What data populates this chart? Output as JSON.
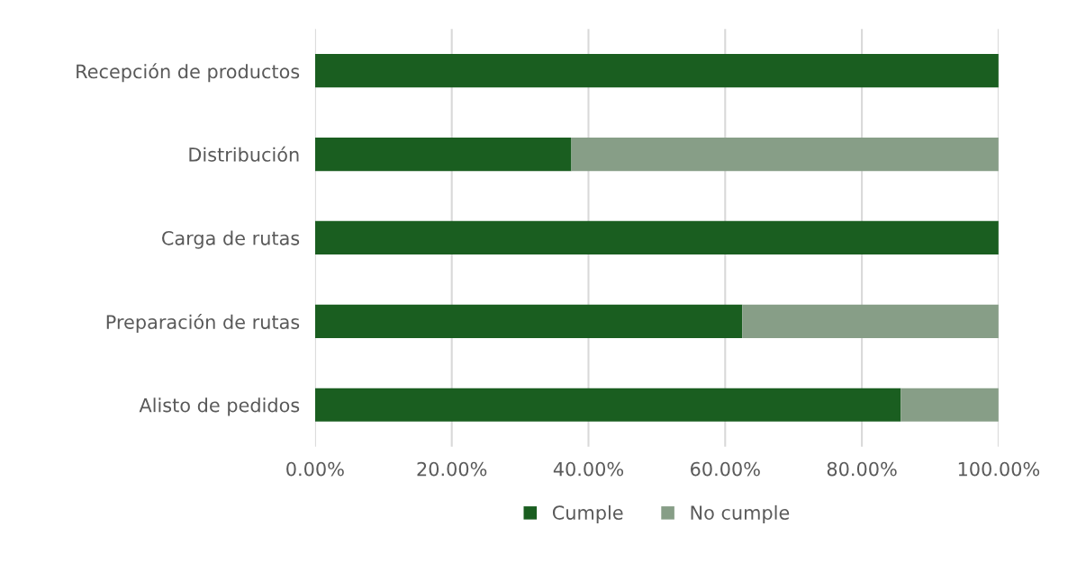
{
  "chart_data": {
    "type": "bar",
    "orientation": "horizontal",
    "stacked": true,
    "categories": [
      "Recepción de productos",
      "Distribución",
      "Carga de rutas",
      "Preparación de rutas",
      "Alisto de pedidos"
    ],
    "series": [
      {
        "name": "Cumple",
        "color": "#1a5e20",
        "values": [
          100,
          37.5,
          100,
          62.5,
          85.7
        ]
      },
      {
        "name": "No cumple",
        "color": "#879e87",
        "values": [
          0,
          62.5,
          0,
          37.5,
          14.3
        ]
      }
    ],
    "xlim": [
      0,
      100
    ],
    "xticks": [
      {
        "value": 0,
        "label": "0.00%"
      },
      {
        "value": 20,
        "label": "20.00%"
      },
      {
        "value": 40,
        "label": "40.00%"
      },
      {
        "value": 60,
        "label": "60.00%"
      },
      {
        "value": 80,
        "label": "80.00%"
      },
      {
        "value": 100,
        "label": "100.00%"
      }
    ],
    "grid": "x",
    "legend": "bottom"
  }
}
